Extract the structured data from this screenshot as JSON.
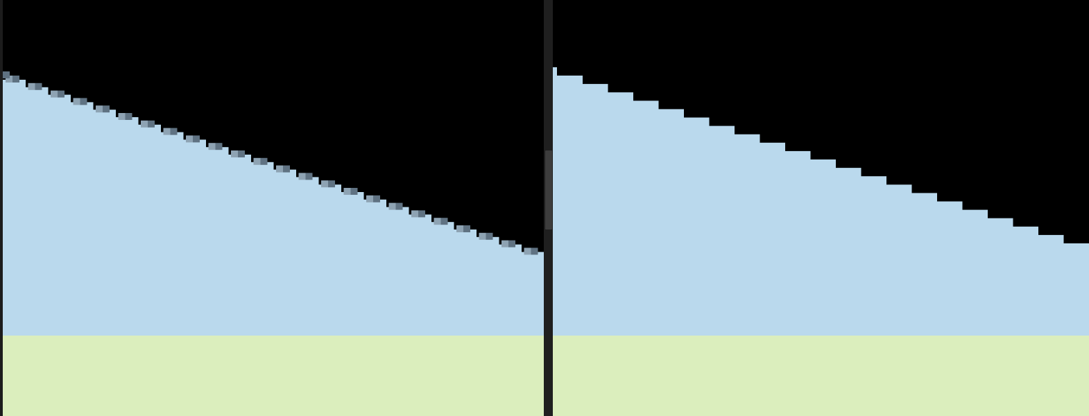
{
  "colors": {
    "background": "#000000",
    "upper_region": "#bad9ed",
    "lower_region": "#dbeebd",
    "aliased_edge_dark": "#5f7282",
    "aliased_edge_light": "#8ea3b3",
    "divider": "#1f1f1f",
    "divider_handle": "#3d3d3d"
  },
  "panes": [
    {
      "id": "left",
      "rendering": "antialiased-staircase"
    },
    {
      "id": "right",
      "rendering": "aliased-staircase"
    }
  ]
}
